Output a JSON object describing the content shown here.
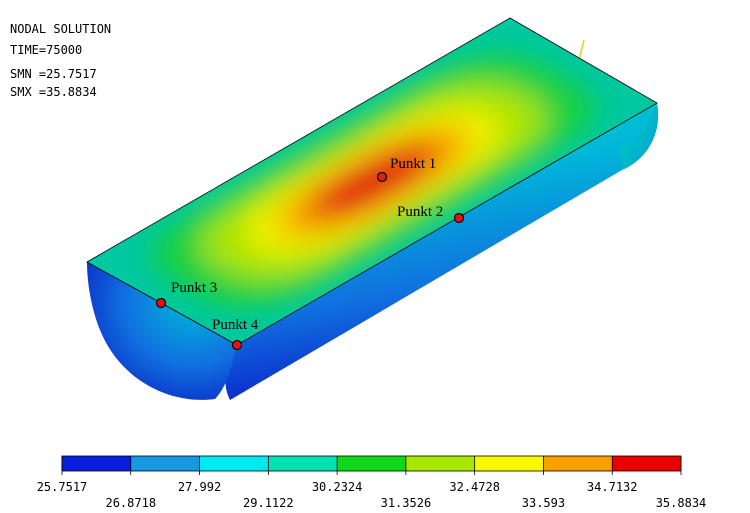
{
  "header": {
    "title": "NODAL SOLUTION",
    "time": "TIME=75000",
    "smn": "SMN =25.7517",
    "smx": "SMX =35.8834"
  },
  "points": [
    {
      "label": "Punkt 1"
    },
    {
      "label": "Punkt 2"
    },
    {
      "label": "Punkt 3"
    },
    {
      "label": "Punkt 4"
    }
  ],
  "legend": {
    "colors": [
      "#0a1ee0",
      "#1898e0",
      "#00e8f0",
      "#00e0b0",
      "#10d818",
      "#a8e800",
      "#f8f800",
      "#f8a000",
      "#e80000"
    ],
    "labels": [
      "25.7517",
      "26.8718",
      "27.992",
      "29.1122",
      "30.2324",
      "31.3526",
      "32.4728",
      "33.593",
      "34.7132",
      "35.8834"
    ]
  }
}
